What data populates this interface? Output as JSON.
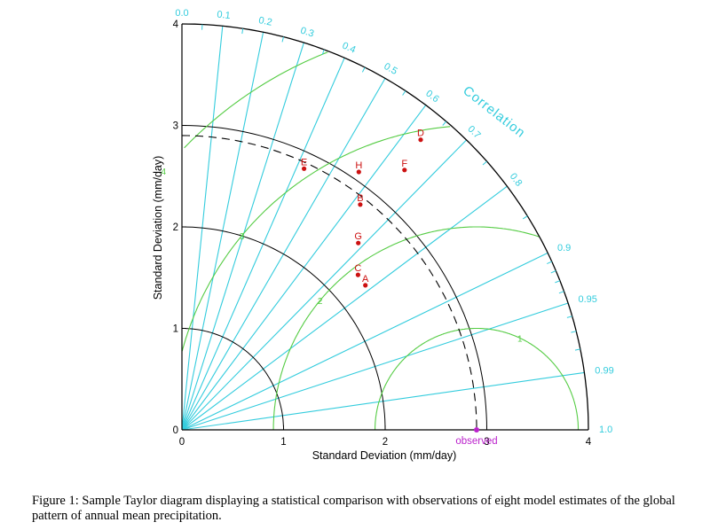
{
  "figure": {
    "caption_label": "Figure 1:",
    "caption_text": "Sample Taylor diagram displaying a statistical comparison with observations of eight model estimates of the global pattern of annual mean precipitation."
  },
  "chart_data": {
    "type": "taylor",
    "xlabel": "Standard Deviation (mm/day)",
    "ylabel": "Standard Deviation (mm/day)",
    "correlation_label": "Correlation",
    "std_range": [
      0,
      4
    ],
    "std_ticks": [
      0,
      1,
      2,
      3,
      4
    ],
    "std_tick_labels": [
      "0",
      "1",
      "2",
      "3",
      "4"
    ],
    "std_arcs": [
      1,
      2,
      3
    ],
    "correlation_ticks": [
      0.0,
      0.1,
      0.2,
      0.3,
      0.4,
      0.5,
      0.6,
      0.7,
      0.8,
      0.9,
      0.95,
      0.99,
      1.0
    ],
    "correlation_tick_labels": [
      "0.0",
      "0.1",
      "0.2",
      "0.3",
      "0.4",
      "0.5",
      "0.6",
      "0.7",
      "0.8",
      "0.9",
      "0.95",
      "0.99",
      "1.0"
    ],
    "observed": {
      "std": 2.9,
      "label": "observed"
    },
    "rms_contours": [
      1,
      2,
      3,
      4
    ],
    "rms_labels": [
      "1",
      "2",
      "3",
      "4"
    ],
    "models": [
      {
        "label": "A",
        "std": 2.3,
        "corr": 0.785
      },
      {
        "label": "B",
        "std": 2.83,
        "corr": 0.62
      },
      {
        "label": "C",
        "std": 2.31,
        "corr": 0.75
      },
      {
        "label": "D",
        "std": 3.7,
        "corr": 0.635
      },
      {
        "label": "E",
        "std": 2.84,
        "corr": 0.423
      },
      {
        "label": "F",
        "std": 3.37,
        "corr": 0.65
      },
      {
        "label": "G",
        "std": 2.53,
        "corr": 0.686
      },
      {
        "label": "H",
        "std": 3.08,
        "corr": 0.565
      }
    ],
    "colors": {
      "axes": "#000000",
      "correlation": "#33ccdd",
      "rms": "#55cc44",
      "models": "#cc1111",
      "observed": "#bb22cc"
    }
  }
}
